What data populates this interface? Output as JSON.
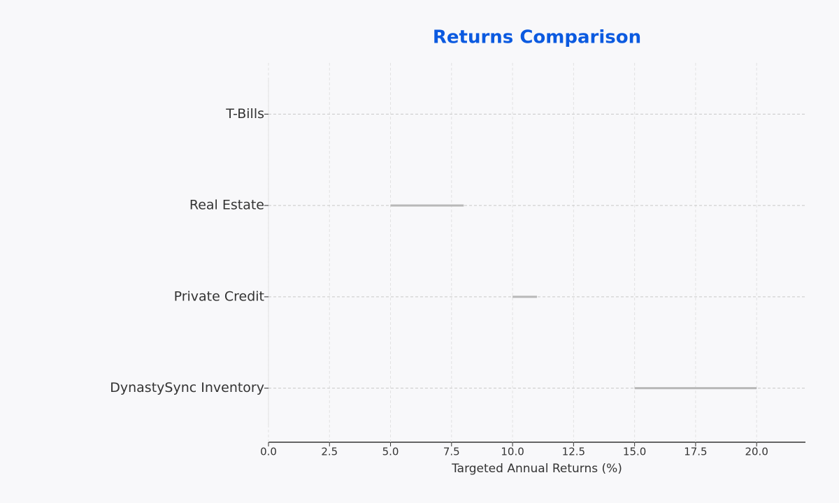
{
  "chart_data": {
    "type": "range",
    "title": "Returns Comparison",
    "x_label": "Targeted Annual Returns (%)",
    "categories": [
      "T-Bills",
      "Real Estate",
      "Private Credit",
      "DynastySync Inventory"
    ],
    "low": [
      null,
      5,
      10,
      15
    ],
    "high": [
      null,
      8,
      11,
      20
    ],
    "color": "#b8b8b8",
    "xlim": [
      0,
      22
    ],
    "xticks": [
      {
        "value": 0,
        "label": "0.0"
      },
      {
        "value": 2.5,
        "label": "2.5"
      },
      {
        "value": 5,
        "label": "5.0"
      },
      {
        "value": 7.5,
        "label": "7.5"
      },
      {
        "value": 10,
        "label": "10.0"
      },
      {
        "value": 12.5,
        "label": "12.5"
      },
      {
        "value": 15,
        "label": "15.0"
      },
      {
        "value": 17.5,
        "label": "17.5"
      },
      {
        "value": 20,
        "label": "20.0"
      }
    ],
    "grid": true
  }
}
